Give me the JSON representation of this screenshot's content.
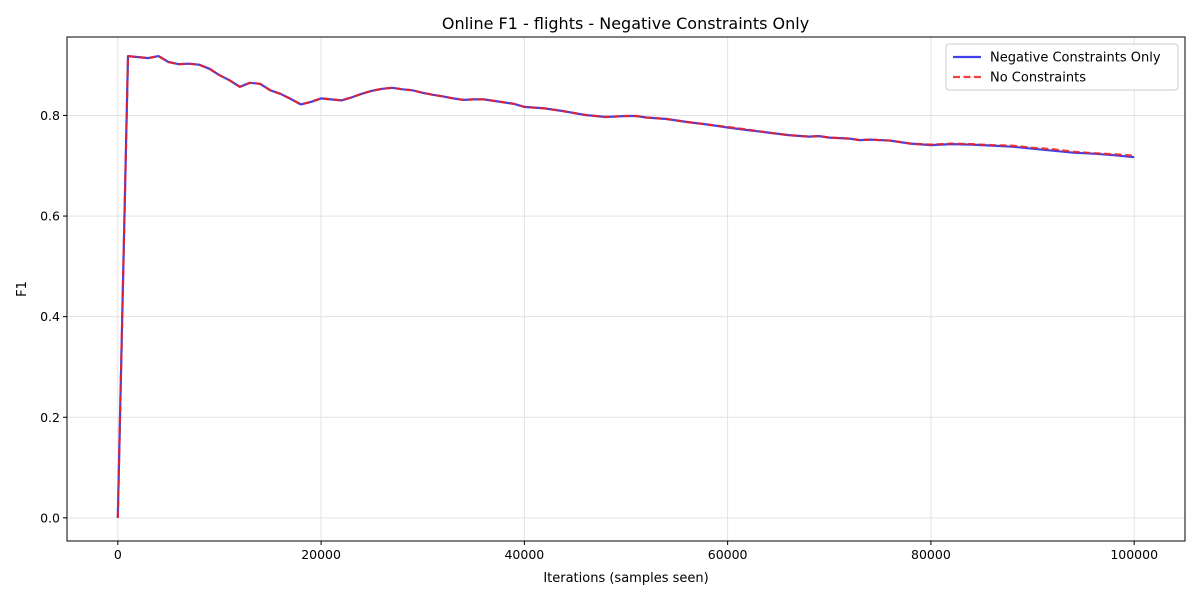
{
  "chart_data": {
    "type": "line",
    "title": "Online F1 - flights - Negative Constraints Only",
    "xlabel": "Iterations (samples seen)",
    "ylabel": "F1",
    "xlim": [
      -5000,
      105000
    ],
    "ylim": [
      -0.046,
      0.956
    ],
    "xticks": [
      0,
      20000,
      40000,
      60000,
      80000,
      100000
    ],
    "xtick_labels": [
      "0",
      "20000",
      "40000",
      "60000",
      "80000",
      "100000"
    ],
    "yticks": [
      0.0,
      0.2,
      0.4,
      0.6,
      0.8
    ],
    "ytick_labels": [
      "0.0",
      "0.2",
      "0.4",
      "0.6",
      "0.8"
    ],
    "grid": true,
    "legend_position": "top-right",
    "series": [
      {
        "name": "Negative Constraints Only",
        "color": "#2020e8",
        "style": "solid",
        "x": [
          0,
          1000,
          2000,
          3000,
          4000,
          5000,
          6000,
          7000,
          8000,
          9000,
          10000,
          11000,
          12000,
          13000,
          14000,
          15000,
          16000,
          17000,
          18000,
          19000,
          20000,
          21000,
          22000,
          23000,
          24000,
          25000,
          26000,
          27000,
          28000,
          29000,
          30000,
          31000,
          32000,
          33000,
          34000,
          35000,
          36000,
          37000,
          38000,
          39000,
          40000,
          42000,
          44000,
          46000,
          48000,
          50000,
          51000,
          52000,
          54000,
          56000,
          58000,
          60000,
          62000,
          64000,
          66000,
          68000,
          69000,
          70000,
          72000,
          73000,
          74000,
          76000,
          78000,
          80000,
          82000,
          84000,
          86000,
          88000,
          90000,
          92000,
          94000,
          96000,
          98000,
          100000
        ],
        "values": [
          0.0,
          0.918,
          0.916,
          0.914,
          0.918,
          0.906,
          0.902,
          0.903,
          0.901,
          0.893,
          0.88,
          0.87,
          0.857,
          0.865,
          0.863,
          0.85,
          0.843,
          0.833,
          0.822,
          0.827,
          0.834,
          0.832,
          0.83,
          0.836,
          0.843,
          0.849,
          0.853,
          0.855,
          0.852,
          0.85,
          0.845,
          0.841,
          0.838,
          0.834,
          0.831,
          0.832,
          0.832,
          0.829,
          0.826,
          0.823,
          0.817,
          0.814,
          0.808,
          0.801,
          0.797,
          0.799,
          0.799,
          0.796,
          0.793,
          0.787,
          0.782,
          0.776,
          0.771,
          0.766,
          0.761,
          0.758,
          0.759,
          0.756,
          0.754,
          0.751,
          0.752,
          0.75,
          0.744,
          0.741,
          0.743,
          0.742,
          0.74,
          0.738,
          0.734,
          0.73,
          0.726,
          0.724,
          0.721,
          0.717
        ]
      },
      {
        "name": "No Constraints",
        "color": "#ee2020",
        "style": "dashed",
        "x": [
          0,
          1000,
          2000,
          3000,
          4000,
          5000,
          6000,
          7000,
          8000,
          9000,
          10000,
          11000,
          12000,
          13000,
          14000,
          15000,
          16000,
          17000,
          18000,
          19000,
          20000,
          21000,
          22000,
          23000,
          24000,
          25000,
          26000,
          27000,
          28000,
          29000,
          30000,
          31000,
          32000,
          33000,
          34000,
          35000,
          36000,
          37000,
          38000,
          39000,
          40000,
          42000,
          44000,
          46000,
          48000,
          50000,
          51000,
          52000,
          54000,
          56000,
          58000,
          60000,
          62000,
          64000,
          66000,
          68000,
          69000,
          70000,
          72000,
          73000,
          74000,
          76000,
          78000,
          80000,
          82000,
          84000,
          86000,
          88000,
          90000,
          92000,
          94000,
          96000,
          98000,
          100000
        ],
        "values": [
          0.0,
          0.918,
          0.916,
          0.914,
          0.918,
          0.906,
          0.902,
          0.903,
          0.901,
          0.893,
          0.88,
          0.87,
          0.857,
          0.865,
          0.863,
          0.85,
          0.843,
          0.833,
          0.822,
          0.827,
          0.834,
          0.832,
          0.83,
          0.836,
          0.843,
          0.849,
          0.853,
          0.855,
          0.852,
          0.85,
          0.845,
          0.841,
          0.838,
          0.834,
          0.831,
          0.832,
          0.832,
          0.829,
          0.826,
          0.823,
          0.817,
          0.814,
          0.808,
          0.801,
          0.797,
          0.799,
          0.799,
          0.796,
          0.793,
          0.787,
          0.782,
          0.777,
          0.772,
          0.766,
          0.761,
          0.758,
          0.759,
          0.756,
          0.754,
          0.751,
          0.752,
          0.75,
          0.744,
          0.742,
          0.744,
          0.743,
          0.741,
          0.74,
          0.736,
          0.733,
          0.728,
          0.725,
          0.723,
          0.72
        ]
      }
    ]
  }
}
